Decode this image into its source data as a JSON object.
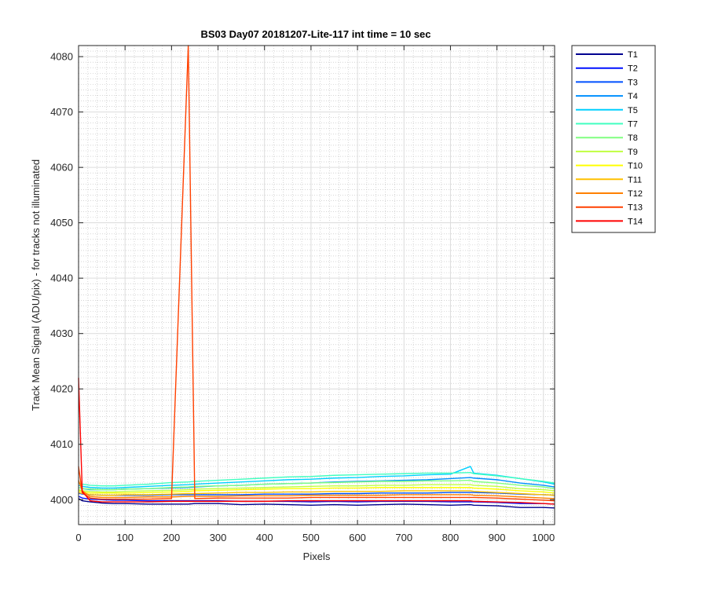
{
  "chart_data": {
    "type": "line",
    "title": "BS03 Day07 20181207-Lite-117 int time = 10 sec",
    "xlabel": "Pixels",
    "ylabel": "Track Mean Signal (ADU/pix) - for tracks not illuminated",
    "xlim": [
      0,
      1024
    ],
    "ylim": [
      3995.5,
      4082
    ],
    "xticks": [
      0,
      100,
      200,
      300,
      400,
      500,
      600,
      700,
      800,
      900,
      1000
    ],
    "yticks": [
      4000,
      4010,
      4020,
      4030,
      4040,
      4050,
      4060,
      4070,
      4080
    ],
    "grid": "major and minor",
    "legend_position": "outside-right",
    "x_points": [
      0,
      8,
      25,
      50,
      75,
      100,
      150,
      200,
      236,
      250,
      300,
      350,
      400,
      450,
      500,
      550,
      600,
      650,
      700,
      750,
      800,
      843,
      850,
      900,
      950,
      1000,
      1024
    ],
    "series": [
      {
        "name": "T1",
        "color": "#00008f",
        "values": [
          4000.2,
          3999.8,
          3999.6,
          3999.4,
          3999.3,
          3999.3,
          3999.2,
          3999.2,
          3999.2,
          3999.3,
          3999.3,
          3999.1,
          3999.2,
          3999.1,
          3999.0,
          3999.1,
          3999.0,
          3999.1,
          3999.2,
          3999.1,
          3999.0,
          3999.1,
          3999.0,
          3998.9,
          3998.6,
          3998.6,
          3998.5
        ]
      },
      {
        "name": "T2",
        "color": "#0010ff",
        "values": [
          4000.6,
          4000.3,
          4000.1,
          4000.0,
          3999.9,
          3999.9,
          3999.8,
          3999.8,
          3999.8,
          3999.8,
          3999.8,
          3999.7,
          3999.7,
          3999.7,
          3999.6,
          3999.7,
          3999.6,
          3999.7,
          3999.7,
          3999.7,
          3999.6,
          3999.6,
          3999.6,
          3999.5,
          3999.3,
          3999.3,
          3999.2
        ]
      },
      {
        "name": "T3",
        "color": "#0050ff",
        "values": [
          4001.2,
          4001.0,
          4000.9,
          4000.8,
          4000.8,
          4000.8,
          4000.8,
          4000.9,
          4000.9,
          4000.9,
          4000.9,
          4000.9,
          4001.0,
          4001.0,
          4001.0,
          4001.1,
          4001.1,
          4001.2,
          4001.2,
          4001.2,
          4001.3,
          4001.3,
          4001.3,
          4001.2,
          4001.0,
          4000.9,
          4000.8
        ]
      },
      {
        "name": "T4",
        "color": "#0090ff",
        "values": [
          4002.2,
          4002.0,
          4001.8,
          4001.8,
          4001.8,
          4001.9,
          4002.0,
          4002.1,
          4002.2,
          4002.3,
          4002.5,
          4002.6,
          4002.8,
          4002.9,
          4003.0,
          4003.2,
          4003.3,
          4003.4,
          4003.5,
          4003.6,
          4003.8,
          4004.0,
          4003.9,
          4003.6,
          4003.0,
          4002.6,
          4002.3
        ]
      },
      {
        "name": "T5",
        "color": "#00d0ff",
        "values": [
          4002.6,
          4002.4,
          4002.2,
          4002.1,
          4002.1,
          4002.2,
          4002.4,
          4002.6,
          4002.7,
          4002.8,
          4003.0,
          4003.2,
          4003.4,
          4003.6,
          4003.7,
          4003.9,
          4004.0,
          4004.2,
          4004.3,
          4004.5,
          4004.6,
          4006.0,
          4004.8,
          4004.4,
          4003.8,
          4003.2,
          4002.8
        ]
      },
      {
        "name": "T7",
        "color": "#40ffc0",
        "values": [
          4003.0,
          4002.8,
          4002.6,
          4002.5,
          4002.5,
          4002.6,
          4002.8,
          4003.1,
          4003.2,
          4003.3,
          4003.5,
          4003.7,
          4003.9,
          4004.1,
          4004.2,
          4004.4,
          4004.5,
          4004.6,
          4004.7,
          4004.8,
          4004.8,
          4004.9,
          4004.7,
          4004.3,
          4003.8,
          4003.3,
          4003.0
        ]
      },
      {
        "name": "T8",
        "color": "#80ff80",
        "values": [
          4002.2,
          4002.0,
          4001.9,
          4001.8,
          4001.8,
          4001.9,
          4002.0,
          4002.2,
          4002.3,
          4002.4,
          4002.5,
          4002.6,
          4002.8,
          4002.9,
          4003.0,
          4003.1,
          4003.2,
          4003.3,
          4003.3,
          4003.4,
          4003.4,
          4003.5,
          4003.3,
          4003.0,
          4002.6,
          4002.3,
          4002.0
        ]
      },
      {
        "name": "T9",
        "color": "#c0ff40",
        "values": [
          4001.8,
          4001.6,
          4001.5,
          4001.4,
          4001.4,
          4001.5,
          4001.6,
          4001.7,
          4001.8,
          4001.9,
          4002.0,
          4002.1,
          4002.2,
          4002.3,
          4002.4,
          4002.5,
          4002.5,
          4002.6,
          4002.6,
          4002.7,
          4002.7,
          4002.7,
          4002.6,
          4002.4,
          4002.0,
          4001.8,
          4001.6
        ]
      },
      {
        "name": "T10",
        "color": "#ffff00",
        "values": [
          4001.6,
          4001.4,
          4001.2,
          4001.2,
          4001.2,
          4001.2,
          4001.3,
          4001.4,
          4001.5,
          4001.6,
          4001.7,
          4001.8,
          4001.9,
          4002.0,
          4002.0,
          4002.1,
          4002.1,
          4002.2,
          4002.2,
          4002.2,
          4002.2,
          4002.2,
          4002.1,
          4001.9,
          4001.6,
          4001.4,
          4001.2
        ]
      },
      {
        "name": "T11",
        "color": "#ffc000",
        "values": [
          4001.3,
          4001.1,
          4000.9,
          4000.8,
          4000.8,
          4000.9,
          4000.9,
          4001.0,
          4001.1,
          4001.1,
          4001.2,
          4001.3,
          4001.3,
          4001.4,
          4001.4,
          4001.5,
          4001.5,
          4001.5,
          4001.6,
          4001.6,
          4001.6,
          4001.6,
          4001.5,
          4001.3,
          4001.1,
          4000.9,
          4000.8
        ]
      },
      {
        "name": "T12",
        "color": "#ff8000",
        "values": [
          4003.5,
          4001.6,
          4000.6,
          4000.4,
          4000.4,
          4000.4,
          4000.5,
          4000.5,
          4000.6,
          4000.6,
          4000.6,
          4000.7,
          4000.7,
          4000.7,
          4000.8,
          4000.8,
          4000.8,
          4000.8,
          4000.9,
          4000.9,
          4000.9,
          4000.9,
          4000.8,
          4000.7,
          4000.5,
          4000.3,
          4000.2
        ]
      },
      {
        "name": "T13",
        "color": "#ff4000",
        "values": [
          4006.0,
          4001.2,
          4000.3,
          4000.1,
          4000.1,
          4000.1,
          4000.1,
          4000.2,
          4082.0,
          4000.2,
          4000.3,
          4000.3,
          4000.3,
          4000.3,
          4000.4,
          4000.4,
          4000.4,
          4000.4,
          4000.4,
          4000.4,
          4000.4,
          4000.4,
          4000.4,
          4000.3,
          4000.1,
          3999.9,
          3999.8
        ]
      },
      {
        "name": "T14",
        "color": "#ff0000",
        "values": [
          4022.0,
          4001.5,
          3999.8,
          3999.6,
          3999.6,
          3999.6,
          3999.6,
          3999.7,
          3999.7,
          3999.7,
          3999.7,
          3999.7,
          3999.7,
          3999.8,
          3999.8,
          3999.8,
          3999.8,
          3999.8,
          3999.8,
          3999.8,
          3999.8,
          3999.8,
          3999.7,
          3999.6,
          3999.5,
          3999.3,
          3999.2
        ]
      }
    ]
  }
}
